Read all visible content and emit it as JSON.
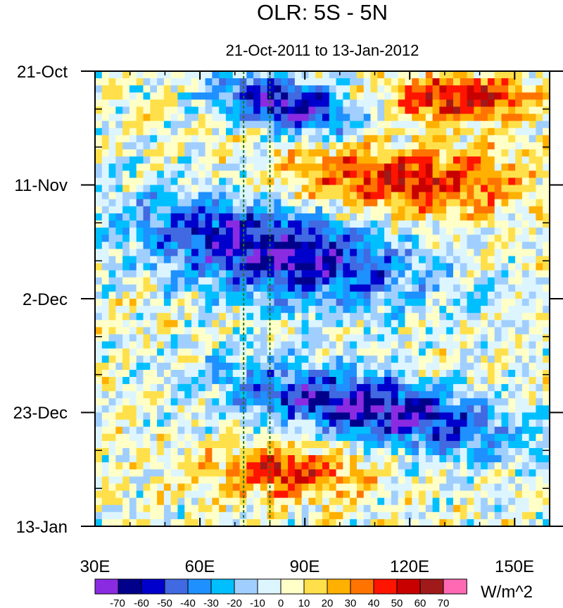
{
  "chart_data": {
    "type": "heatmap",
    "title": "OLR: 5S - 5N",
    "subtitle": "21-Oct-2011 to 13-Jan-2012",
    "x_axis": {
      "label": "",
      "range": [
        30,
        160
      ],
      "ticks": [
        {
          "value": 30,
          "label": "30E"
        },
        {
          "value": 60,
          "label": "60E"
        },
        {
          "value": 90,
          "label": "90E"
        },
        {
          "value": 120,
          "label": "120E"
        },
        {
          "value": 150,
          "label": "150E"
        }
      ]
    },
    "y_axis": {
      "label": "",
      "reversed": true,
      "range_days": [
        0,
        84
      ],
      "ticks": [
        {
          "value": 0,
          "label": "21-Oct"
        },
        {
          "value": 21,
          "label": "11-Nov"
        },
        {
          "value": 42,
          "label": "2-Dec"
        },
        {
          "value": 63,
          "label": "23-Dec"
        },
        {
          "value": 84,
          "label": "13-Jan"
        }
      ]
    },
    "reference_lines_lon": [
      72.5,
      80
    ],
    "colorbar": {
      "units": "W/m^2",
      "levels": [
        "-70",
        "-60",
        "-50",
        "-40",
        "-30",
        "-20",
        "-10",
        "0",
        "10",
        "20",
        "30",
        "40",
        "50",
        "60",
        "70"
      ],
      "colors": [
        "#8a2be2",
        "#00008b",
        "#0000cd",
        "#4169e1",
        "#1e90ff",
        "#00bfff",
        "#a0cfff",
        "#ddf5ff",
        "#ffffc8",
        "#ffe04a",
        "#ffb000",
        "#ff7400",
        "#ff1400",
        "#c80000",
        "#a01a1a",
        "#ff69b4"
      ]
    },
    "features": [
      {
        "type": "convective_band",
        "lon_range": [
          60,
          110
        ],
        "day_range": [
          0,
          12
        ],
        "min_anomaly": -70
      },
      {
        "type": "convective_band",
        "lon_range": [
          30,
          130
        ],
        "day_range": [
          22,
          44
        ],
        "min_anomaly": -70
      },
      {
        "type": "convective_band",
        "lon_range": [
          60,
          160
        ],
        "day_range": [
          55,
          70
        ],
        "min_anomaly": -70
      },
      {
        "type": "suppressed_band",
        "lon_range": [
          75,
          160
        ],
        "day_range": [
          12,
          28
        ],
        "max_anomaly": 50
      },
      {
        "type": "suppressed_band",
        "lon_range": [
          60,
          110
        ],
        "day_range": [
          68,
          80
        ],
        "max_anomaly": 50
      },
      {
        "type": "suppressed_band",
        "lon_range": [
          110,
          160
        ],
        "day_range": [
          0,
          10
        ],
        "max_anomaly": 60
      }
    ],
    "missing_color": "#c8c8c8"
  }
}
